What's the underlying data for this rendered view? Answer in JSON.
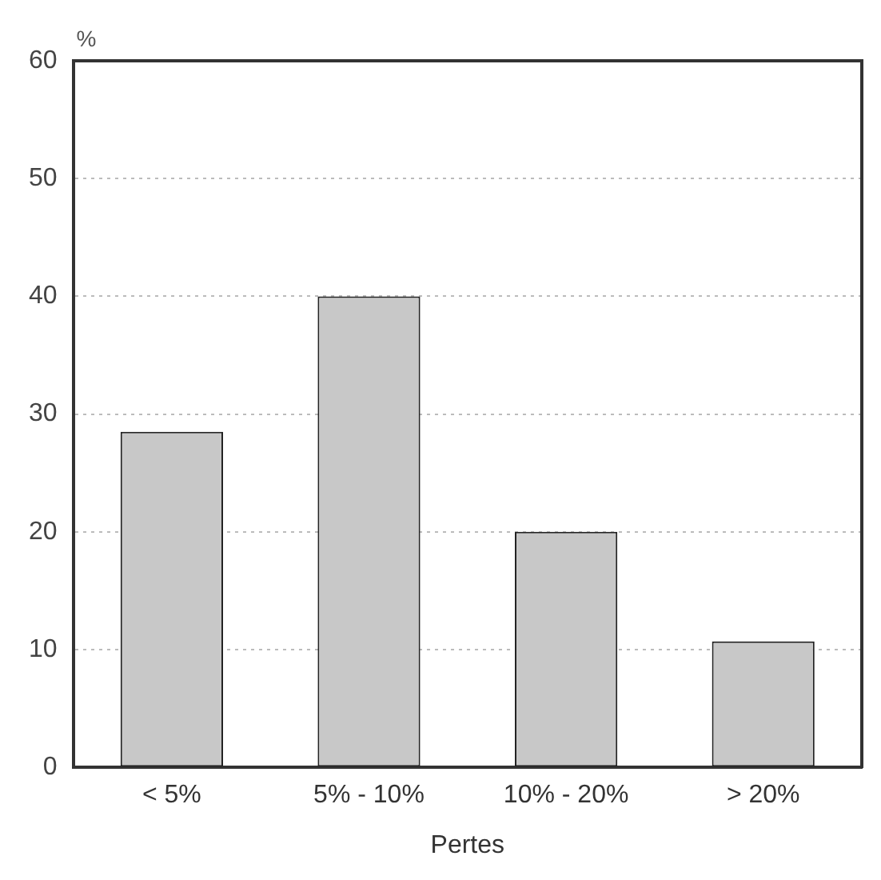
{
  "chart_data": {
    "type": "bar",
    "xlabel": "Pertes",
    "ylabel": "%",
    "categories": [
      "< 5%",
      "5% - 10%",
      "10% - 20%",
      "> 20%"
    ],
    "values": [
      28.5,
      40,
      20,
      10.7
    ],
    "color": "#c8c8c8",
    "ylim": [
      0,
      60
    ],
    "yticks": [
      0,
      10,
      20,
      30,
      40,
      50,
      60
    ],
    "grid": "y",
    "legend": false
  }
}
